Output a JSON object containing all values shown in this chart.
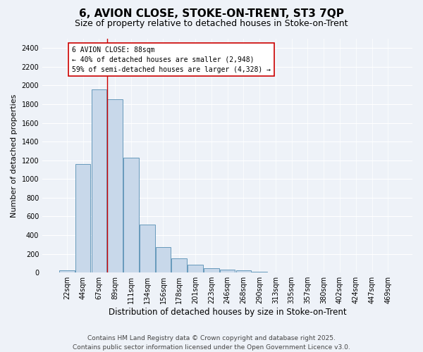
{
  "title": "6, AVION CLOSE, STOKE-ON-TRENT, ST3 7QP",
  "subtitle": "Size of property relative to detached houses in Stoke-on-Trent",
  "xlabel": "Distribution of detached houses by size in Stoke-on-Trent",
  "ylabel": "Number of detached properties",
  "categories": [
    "22sqm",
    "44sqm",
    "67sqm",
    "89sqm",
    "111sqm",
    "134sqm",
    "156sqm",
    "178sqm",
    "201sqm",
    "223sqm",
    "246sqm",
    "268sqm",
    "290sqm",
    "313sqm",
    "335sqm",
    "357sqm",
    "380sqm",
    "402sqm",
    "424sqm",
    "447sqm",
    "469sqm"
  ],
  "values": [
    25,
    1160,
    1960,
    1850,
    1230,
    510,
    275,
    155,
    85,
    45,
    30,
    25,
    10,
    5,
    3,
    2,
    2,
    1,
    1,
    1,
    1
  ],
  "bar_color": "#c8d8ea",
  "bar_edge_color": "#6699bb",
  "vline_x_index": 2,
  "vline_color": "#cc0000",
  "annotation_text": "6 AVION CLOSE: 88sqm\n← 40% of detached houses are smaller (2,948)\n59% of semi-detached houses are larger (4,328) →",
  "annotation_box_color": "#ffffff",
  "annotation_box_edge": "#cc0000",
  "ylim": [
    0,
    2500
  ],
  "yticks": [
    0,
    200,
    400,
    600,
    800,
    1000,
    1200,
    1400,
    1600,
    1800,
    2000,
    2200,
    2400
  ],
  "background_color": "#eef2f8",
  "footer_line1": "Contains HM Land Registry data © Crown copyright and database right 2025.",
  "footer_line2": "Contains public sector information licensed under the Open Government Licence v3.0.",
  "title_fontsize": 11,
  "subtitle_fontsize": 9,
  "xlabel_fontsize": 8.5,
  "ylabel_fontsize": 8,
  "tick_fontsize": 7,
  "annotation_fontsize": 7,
  "footer_fontsize": 6.5
}
